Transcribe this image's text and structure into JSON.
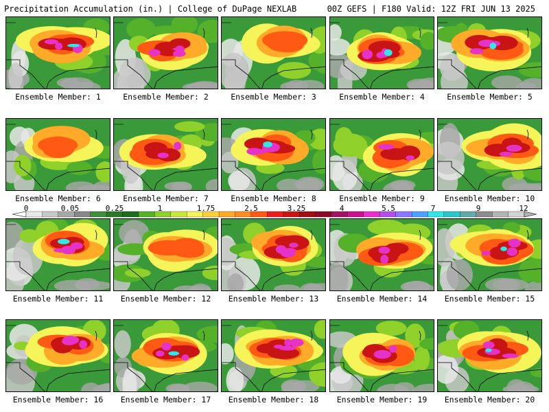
{
  "header": {
    "left_title": "Precipitation Accumulation (in.) | College of DuPage NEXLAB",
    "right_title": "00Z GEFS | F180 Valid: 12Z FRI JUN 13 2025"
  },
  "caption_prefix": "Ensemble Member: ",
  "members": [
    {
      "number": 1,
      "caption": "Ensemble Member: 1",
      "intensity": 3,
      "peak": "cyan"
    },
    {
      "number": 2,
      "caption": "Ensemble Member: 2",
      "intensity": 3,
      "peak": "magenta"
    },
    {
      "number": 3,
      "caption": "Ensemble Member: 3",
      "intensity": 1,
      "peak": "red"
    },
    {
      "number": 4,
      "caption": "Ensemble Member: 4",
      "intensity": 3,
      "peak": "cyan"
    },
    {
      "number": 5,
      "caption": "Ensemble Member: 5",
      "intensity": 3,
      "peak": "cyan"
    },
    {
      "number": 6,
      "caption": "Ensemble Member: 6",
      "intensity": 1,
      "peak": "red"
    },
    {
      "number": 7,
      "caption": "Ensemble Member: 7",
      "intensity": 2,
      "peak": "magenta"
    },
    {
      "number": 8,
      "caption": "Ensemble Member: 8",
      "intensity": 3,
      "peak": "cyan"
    },
    {
      "number": 9,
      "caption": "Ensemble Member: 9",
      "intensity": 2,
      "peak": "magenta"
    },
    {
      "number": 10,
      "caption": "Ensemble Member: 10",
      "intensity": 2,
      "peak": "magenta"
    },
    {
      "number": 11,
      "caption": "Ensemble Member: 11",
      "intensity": 3,
      "peak": "cyan"
    },
    {
      "number": 12,
      "caption": "Ensemble Member: 12",
      "intensity": 1,
      "peak": "red"
    },
    {
      "number": 13,
      "caption": "Ensemble Member: 13",
      "intensity": 3,
      "peak": "magenta"
    },
    {
      "number": 14,
      "caption": "Ensemble Member: 14",
      "intensity": 2,
      "peak": "magenta"
    },
    {
      "number": 15,
      "caption": "Ensemble Member: 15",
      "intensity": 3,
      "peak": "cyan"
    },
    {
      "number": 16,
      "caption": "Ensemble Member: 16",
      "intensity": 3,
      "peak": "magenta"
    },
    {
      "number": 17,
      "caption": "Ensemble Member: 17",
      "intensity": 3,
      "peak": "cyan"
    },
    {
      "number": 18,
      "caption": "Ensemble Member: 18",
      "intensity": 3,
      "peak": "magenta"
    },
    {
      "number": 19,
      "caption": "Ensemble Member: 19",
      "intensity": 2,
      "peak": "magenta"
    },
    {
      "number": 20,
      "caption": "Ensemble Member: 20",
      "intensity": 3,
      "peak": "cyan"
    }
  ],
  "colorbar": {
    "labels": [
      "0",
      "0.05",
      "0.25",
      "1",
      "1.75",
      "2.5",
      "3.25",
      "4",
      "5.5",
      "7",
      "9",
      "12"
    ],
    "colors": [
      "#e8e8e8",
      "#c8c8c8",
      "#a8a8a8",
      "#888888",
      "#3e8e3e",
      "#2a7a2a",
      "#1d6b1d",
      "#55b02a",
      "#8fd02a",
      "#c8e63c",
      "#f5f55a",
      "#ffd23c",
      "#ffaa28",
      "#ff8c1e",
      "#ff5a14",
      "#e61e1e",
      "#c81414",
      "#a01010",
      "#8c0a28",
      "#a01464",
      "#c8148c",
      "#e632c8",
      "#b450e6",
      "#8c78ff",
      "#50a0ff",
      "#32e6e6",
      "#28c8c8",
      "#64aaaa",
      "#8c8c8c",
      "#b4b4b4",
      "#d2d2d2"
    ]
  }
}
